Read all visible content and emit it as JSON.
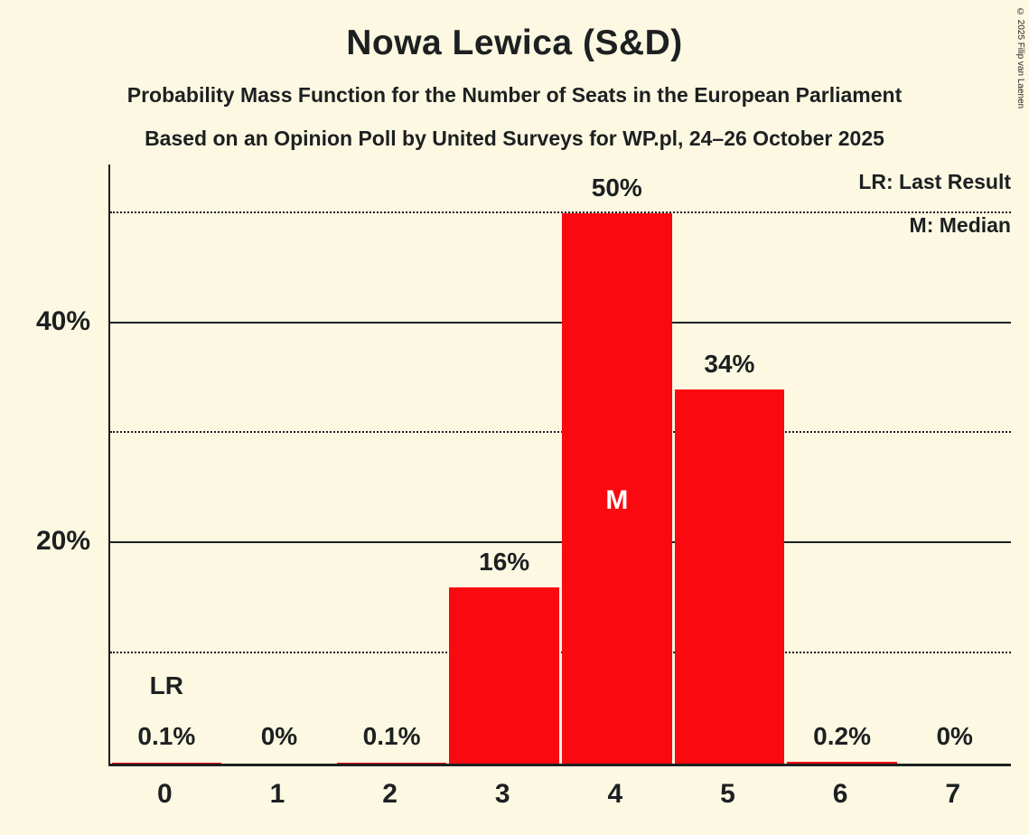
{
  "title": "Nowa Lewica (S&D)",
  "subtitle1": "Probability Mass Function for the Number of Seats in the European Parliament",
  "subtitle2": "Based on an Opinion Poll by United Surveys for WP.pl, 24–26 October 2025",
  "legend": {
    "last_result": "LR: Last Result",
    "median": "M: Median"
  },
  "copyright": "© 2025 Filip van Laenen",
  "colors": {
    "background": "#FDF8E2",
    "bar": "#FA0A10",
    "text": "#1C2021"
  },
  "chart_data": {
    "type": "bar",
    "title": "Nowa Lewica (S&D)",
    "categories": [
      "0",
      "1",
      "2",
      "3",
      "4",
      "5",
      "6",
      "7"
    ],
    "values": [
      0.1,
      0,
      0.1,
      16,
      50,
      34,
      0.2,
      0
    ],
    "labels": [
      "0.1%",
      "0%",
      "0.1%",
      "16%",
      "50%",
      "34%",
      "0.2%",
      "0%"
    ],
    "xlabel": "",
    "ylabel": "",
    "ylim": [
      0,
      54.4
    ],
    "yticks": [
      {
        "value": 20,
        "label": "20%"
      },
      {
        "value": 40,
        "label": "40%"
      }
    ],
    "solid_gridlines": [
      20,
      40
    ],
    "dotted_gridlines": [
      10,
      30,
      50
    ],
    "legend_position": "top-right",
    "annotations": {
      "median_category": "4",
      "median_label": "M",
      "last_result_category": "0",
      "last_result_label": "LR"
    }
  }
}
